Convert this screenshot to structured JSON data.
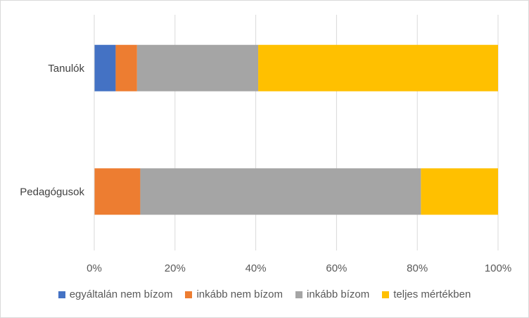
{
  "chart_data": {
    "type": "bar",
    "orientation": "horizontal",
    "stacked": "percent",
    "categories": [
      "Tanulók",
      "Pedagógusok"
    ],
    "series": [
      {
        "name": "egyáltalán nem bízom",
        "color": "#4472C4",
        "values": [
          5.3,
          0
        ]
      },
      {
        "name": "inkább nem bízom",
        "color": "#ED7D31",
        "values": [
          5.3,
          11.4
        ]
      },
      {
        "name": "inkább bízom",
        "color": "#A5A5A5",
        "values": [
          30.0,
          69.5
        ]
      },
      {
        "name": "teljes mértékben",
        "color": "#FFC000",
        "values": [
          59.4,
          19.1
        ]
      }
    ],
    "xlim": [
      0,
      100
    ],
    "xticks": [
      "0%",
      "20%",
      "40%",
      "60%",
      "80%",
      "100%"
    ],
    "grid": true,
    "legend_position": "bottom"
  }
}
